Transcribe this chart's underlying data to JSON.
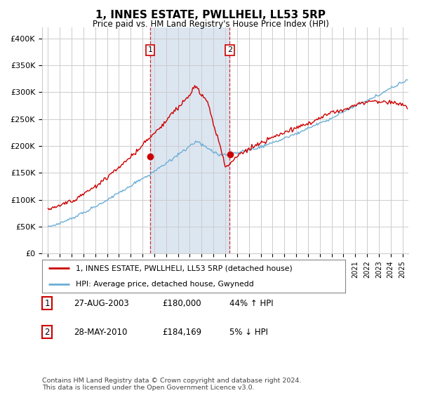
{
  "title": "1, INNES ESTATE, PWLLHELI, LL53 5RP",
  "subtitle": "Price paid vs. HM Land Registry's House Price Index (HPI)",
  "ylabel_ticks": [
    "£0",
    "£50K",
    "£100K",
    "£150K",
    "£200K",
    "£250K",
    "£300K",
    "£350K",
    "£400K"
  ],
  "ytick_values": [
    0,
    50000,
    100000,
    150000,
    200000,
    250000,
    300000,
    350000,
    400000
  ],
  "ylim": [
    0,
    420000
  ],
  "xlim_start": 1994.5,
  "xlim_end": 2025.5,
  "legend_line1": "1, INNES ESTATE, PWLLHELI, LL53 5RP (detached house)",
  "legend_line2": "HPI: Average price, detached house, Gwynedd",
  "sale1_label": "1",
  "sale1_date": "27-AUG-2003",
  "sale1_price": "£180,000",
  "sale1_hpi": "44% ↑ HPI",
  "sale1_year": 2003.65,
  "sale1_value": 180000,
  "sale2_label": "2",
  "sale2_date": "28-MAY-2010",
  "sale2_price": "£184,169",
  "sale2_hpi": "5% ↓ HPI",
  "sale2_year": 2010.38,
  "sale2_value": 184169,
  "footer": "Contains HM Land Registry data © Crown copyright and database right 2024.\nThis data is licensed under the Open Government Licence v3.0.",
  "hpi_color": "#6baed6",
  "price_color": "#cc0000",
  "highlight_color": "#dce6f1",
  "background_color": "#ffffff",
  "grid_color": "#cccccc"
}
